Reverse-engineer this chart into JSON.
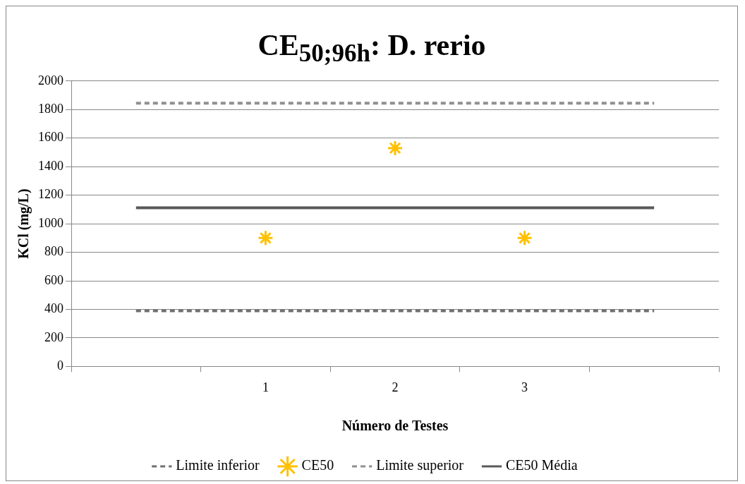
{
  "chart_data": {
    "type": "line",
    "title": "CE$_{50;96h}$: D. rerio",
    "xlabel": "Número de Testes",
    "ylabel": "KCl (mg/L)",
    "categories": [
      null,
      "1",
      "2",
      "3",
      null
    ],
    "series": [
      {
        "name": "Limite inferior",
        "type": "line",
        "line_style": "dashed",
        "marker": "none",
        "color": "#707070",
        "values": [
          390,
          390,
          390,
          390,
          390
        ]
      },
      {
        "name": "CE50",
        "type": "scatter",
        "marker": "cross",
        "color": "#ffc000",
        "values": [
          null,
          900,
          1530,
          900,
          null
        ]
      },
      {
        "name": "Limite superior",
        "type": "line",
        "line_style": "dashed",
        "marker": "none",
        "color": "#909090",
        "values": [
          1845,
          1845,
          1845,
          1845,
          1845
        ]
      },
      {
        "name": "CE50 Média",
        "type": "line",
        "line_style": "solid",
        "marker": "none",
        "color": "#595959",
        "values": [
          1112,
          1112,
          1112,
          1112,
          1112
        ]
      }
    ],
    "ylim": [
      0,
      2000
    ],
    "yticks": [
      0,
      200,
      400,
      600,
      800,
      1000,
      1200,
      1400,
      1600,
      1800,
      2000
    ],
    "grid": "y",
    "legend": "bottom"
  }
}
